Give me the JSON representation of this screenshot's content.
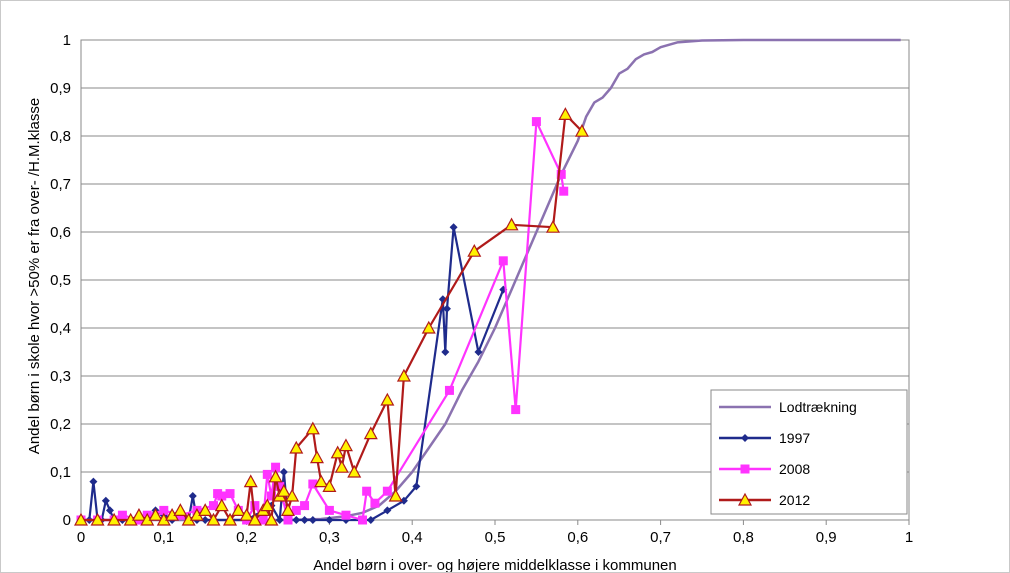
{
  "chart_data": {
    "type": "line",
    "title": "",
    "xlabel": "Andel børn i over- og højere middelklasse i kommunen",
    "ylabel": "Andel børn i skole hvor >50% er fra over- /H.M.klasse",
    "xlim": [
      0,
      1
    ],
    "ylim": [
      0,
      1
    ],
    "xticks": [
      "0",
      "0,1",
      "0,2",
      "0,3",
      "0,4",
      "0,5",
      "0,6",
      "0,7",
      "0,8",
      "0,9",
      "1"
    ],
    "yticks": [
      "0",
      "0,1",
      "0,2",
      "0,3",
      "0,4",
      "0,5",
      "0,6",
      "0,7",
      "0,8",
      "0,9",
      "1"
    ],
    "grid": "horizontal",
    "legend_position": "bottom-right",
    "series": [
      {
        "name": "Lodtrækning",
        "color": "#8B72B0",
        "marker": "none",
        "x": [
          0,
          0.2,
          0.25,
          0.29,
          0.32,
          0.34,
          0.36,
          0.38,
          0.4,
          0.42,
          0.44,
          0.46,
          0.48,
          0.5,
          0.52,
          0.54,
          0.56,
          0.58,
          0.6,
          0.61,
          0.62,
          0.63,
          0.64,
          0.65,
          0.66,
          0.67,
          0.68,
          0.69,
          0.7,
          0.72,
          0.75,
          0.8,
          0.85,
          0.9,
          0.95,
          0.99
        ],
        "y": [
          0,
          0,
          0,
          0.002,
          0.008,
          0.015,
          0.03,
          0.06,
          0.1,
          0.15,
          0.2,
          0.27,
          0.33,
          0.4,
          0.48,
          0.56,
          0.64,
          0.72,
          0.79,
          0.84,
          0.87,
          0.88,
          0.9,
          0.93,
          0.94,
          0.96,
          0.97,
          0.975,
          0.985,
          0.995,
          0.999,
          1,
          1,
          1,
          1,
          1
        ]
      },
      {
        "name": "1997",
        "color": "#1F2B8C",
        "marker": "diamond",
        "x": [
          0,
          0.01,
          0.015,
          0.02,
          0.025,
          0.03,
          0.035,
          0.04,
          0.05,
          0.06,
          0.07,
          0.08,
          0.09,
          0.1,
          0.11,
          0.12,
          0.13,
          0.135,
          0.14,
          0.15,
          0.16,
          0.18,
          0.2,
          0.22,
          0.23,
          0.24,
          0.245,
          0.25,
          0.26,
          0.27,
          0.28,
          0.3,
          0.32,
          0.35,
          0.37,
          0.39,
          0.405,
          0.437,
          0.44,
          0.442,
          0.45,
          0.48,
          0.51
        ],
        "y": [
          0,
          0,
          0.08,
          0,
          0,
          0.04,
          0.02,
          0,
          0,
          0,
          0.01,
          0,
          0.02,
          0.01,
          0,
          0.01,
          0,
          0.05,
          0,
          0,
          0,
          0,
          0,
          0.02,
          0.03,
          0,
          0.1,
          0,
          0,
          0,
          0,
          0,
          0,
          0,
          0.02,
          0.04,
          0.07,
          0.46,
          0.35,
          0.44,
          0.61,
          0.35,
          0.48
        ]
      },
      {
        "name": "2008",
        "color": "#FF33FF",
        "marker": "square",
        "x": [
          0,
          0.02,
          0.04,
          0.05,
          0.07,
          0.08,
          0.1,
          0.12,
          0.14,
          0.16,
          0.165,
          0.17,
          0.18,
          0.19,
          0.2,
          0.21,
          0.22,
          0.225,
          0.23,
          0.235,
          0.24,
          0.25,
          0.26,
          0.27,
          0.28,
          0.3,
          0.32,
          0.34,
          0.345,
          0.355,
          0.37,
          0.445,
          0.51,
          0.525,
          0.55,
          0.58,
          0.583
        ],
        "y": [
          0,
          0,
          0,
          0.01,
          0,
          0.01,
          0.02,
          0.01,
          0.02,
          0.03,
          0.055,
          0.05,
          0.055,
          0.02,
          0,
          0.03,
          0,
          0.095,
          0.05,
          0.11,
          0.07,
          0,
          0.02,
          0.03,
          0.075,
          0.02,
          0.01,
          0,
          0.06,
          0.035,
          0.06,
          0.27,
          0.54,
          0.23,
          0.83,
          0.72,
          0.685
        ]
      },
      {
        "name": "2012",
        "color": "#B01A1A",
        "marker": "triangle",
        "x": [
          0,
          0.02,
          0.04,
          0.06,
          0.07,
          0.08,
          0.09,
          0.1,
          0.11,
          0.12,
          0.13,
          0.14,
          0.15,
          0.16,
          0.17,
          0.18,
          0.19,
          0.2,
          0.205,
          0.21,
          0.22,
          0.225,
          0.23,
          0.235,
          0.24,
          0.245,
          0.25,
          0.255,
          0.26,
          0.28,
          0.285,
          0.29,
          0.3,
          0.31,
          0.315,
          0.32,
          0.33,
          0.35,
          0.37,
          0.38,
          0.39,
          0.42,
          0.475,
          0.52,
          0.57,
          0.585,
          0.605
        ],
        "y": [
          0,
          0,
          0,
          0,
          0.01,
          0,
          0.01,
          0,
          0.01,
          0.02,
          0,
          0.01,
          0.02,
          0,
          0.03,
          0,
          0.02,
          0.01,
          0.08,
          0,
          0.02,
          0.03,
          0,
          0.09,
          0.05,
          0.06,
          0.02,
          0.05,
          0.15,
          0.19,
          0.13,
          0.08,
          0.07,
          0.14,
          0.11,
          0.155,
          0.1,
          0.18,
          0.25,
          0.05,
          0.3,
          0.4,
          0.56,
          0.615,
          0.61,
          0.845,
          0.81
        ]
      }
    ]
  }
}
